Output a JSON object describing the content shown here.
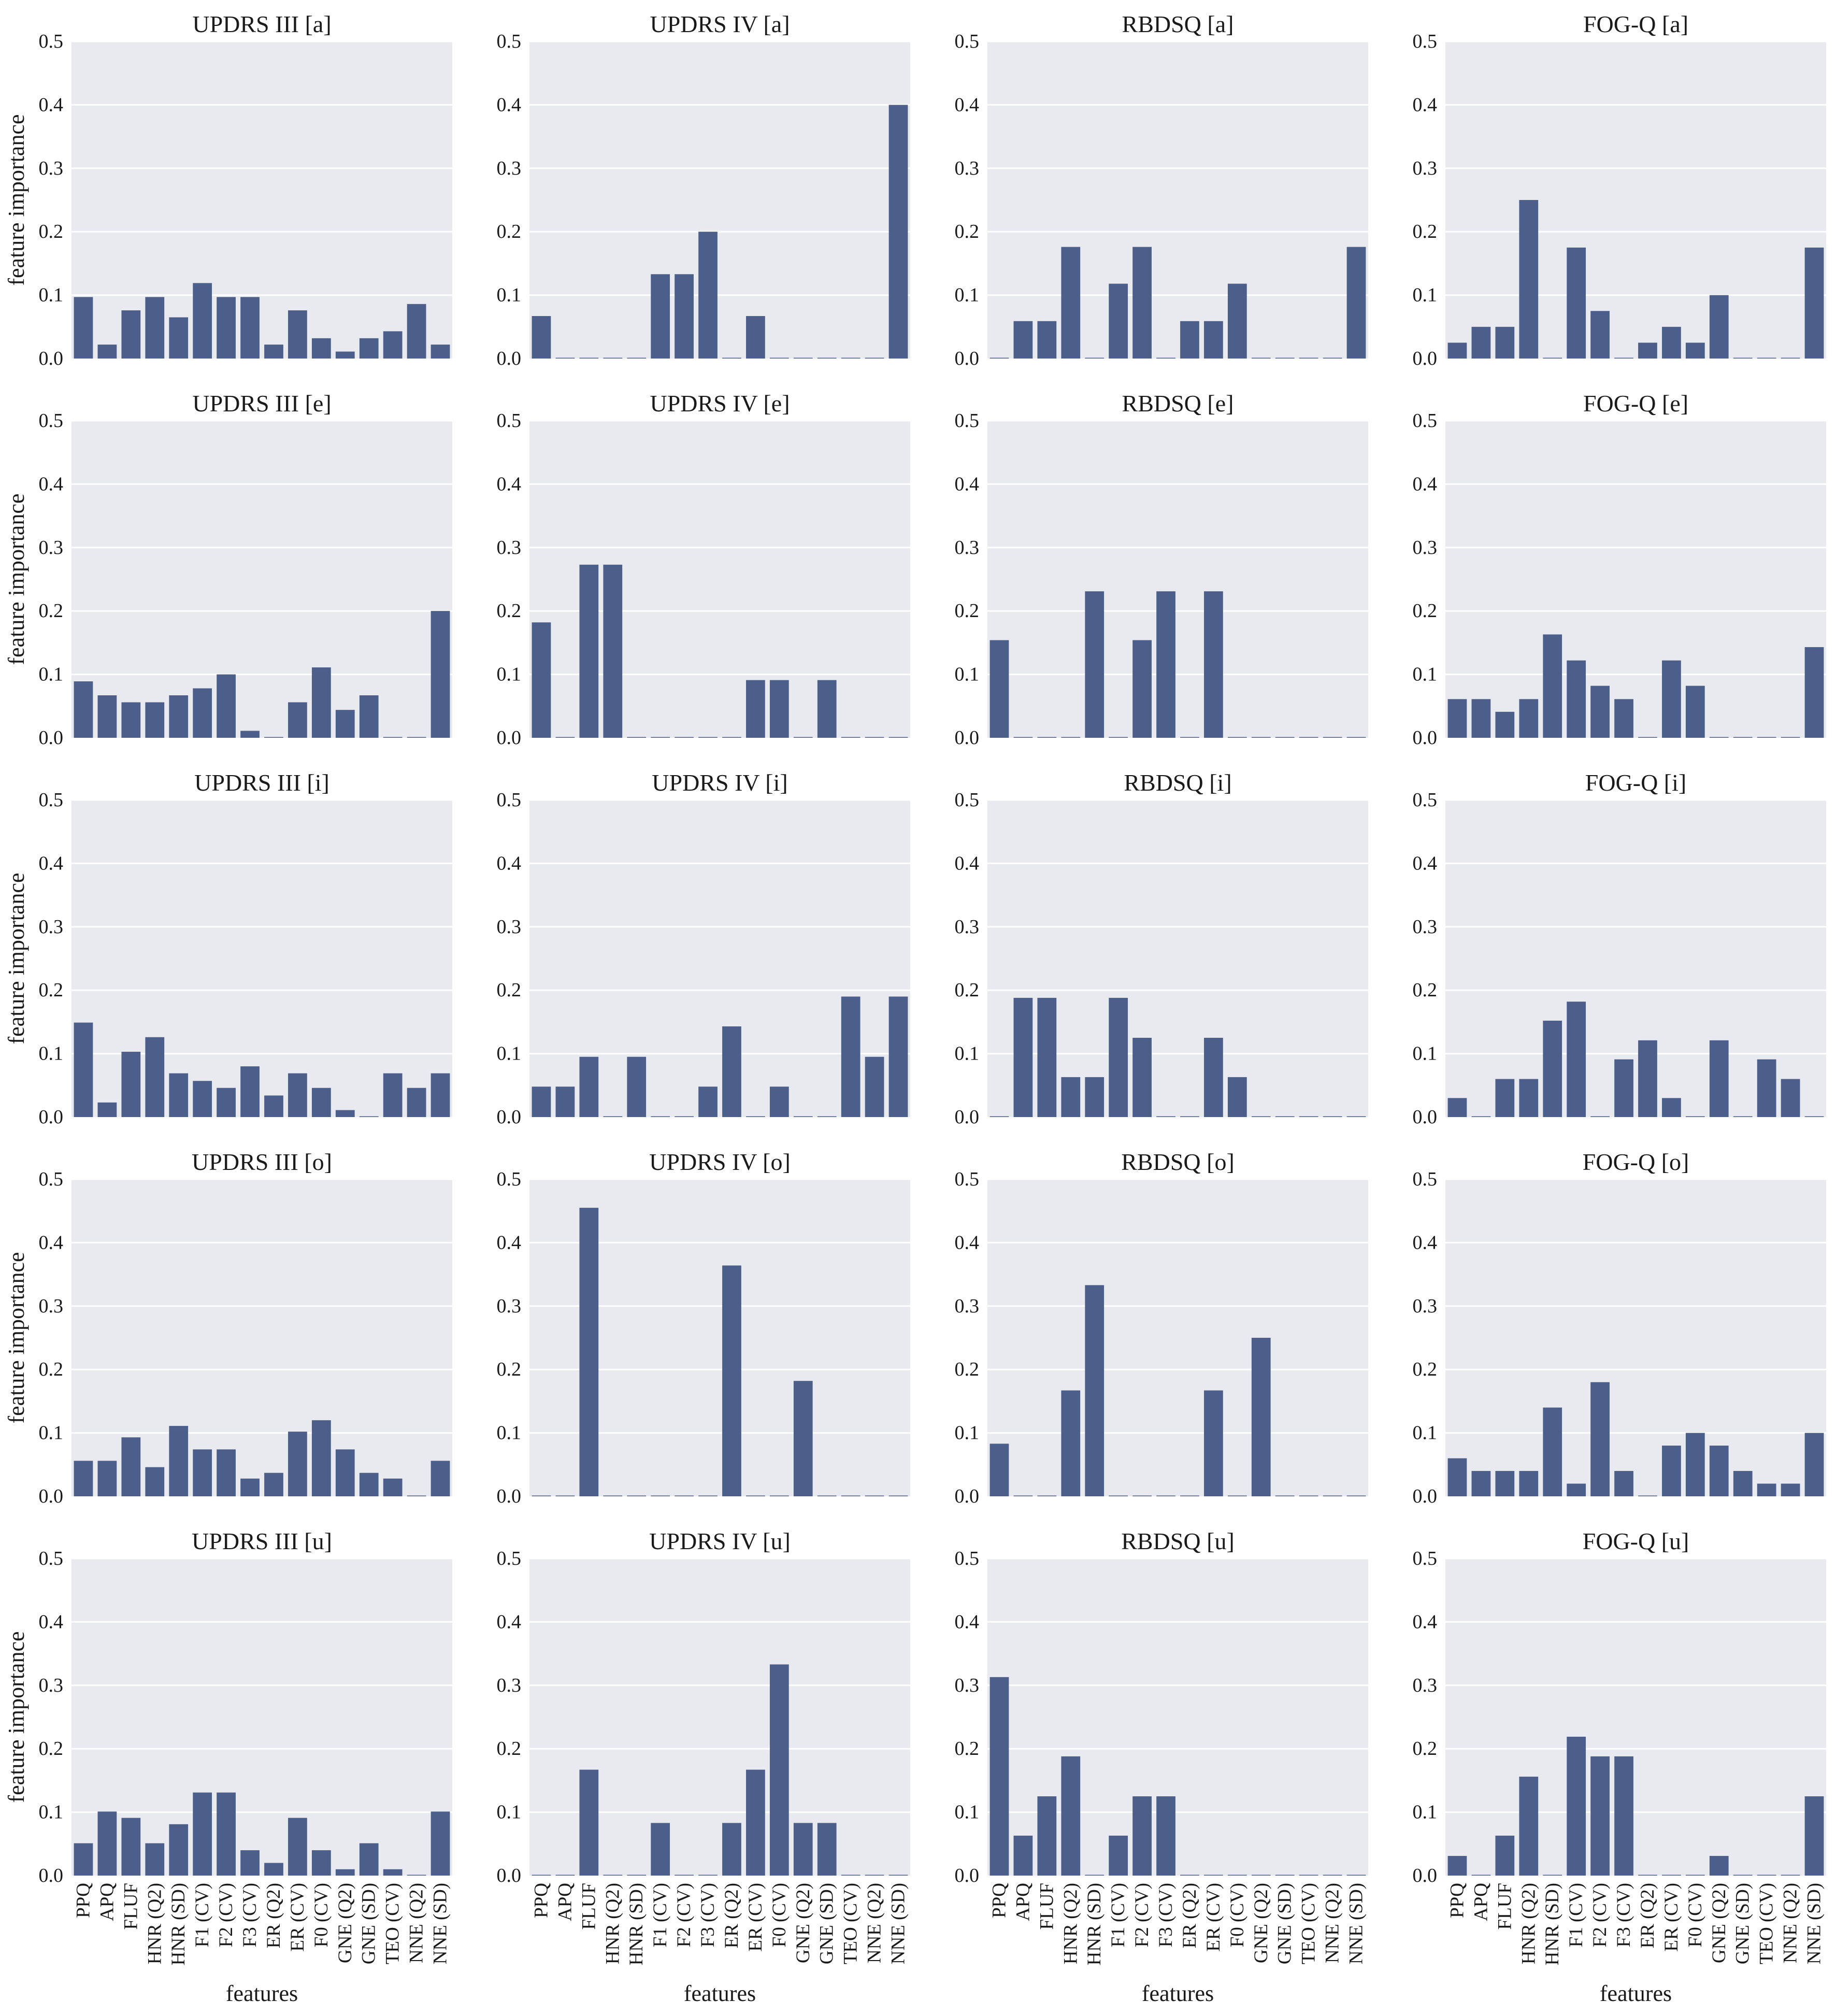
{
  "colors": {
    "bar": "#4c5f8a",
    "plot_bg": "#e9e9f0",
    "grid": "#ffffff"
  },
  "labels": {
    "ylabel": "feature importance",
    "xlabel": "features"
  },
  "y_ticks": [
    "0.0",
    "0.1",
    "0.2",
    "0.3",
    "0.4",
    "0.5"
  ],
  "categories": [
    "PPQ",
    "APQ",
    "FLUF",
    "HNR (Q2)",
    "HNR (SD)",
    "F1 (CV)",
    "F2 (CV)",
    "F3 (CV)",
    "ER (Q2)",
    "ER (CV)",
    "F0 (CV)",
    "GNE (Q2)",
    "GNE (SD)",
    "TEO (CV)",
    "NNE (Q2)",
    "NNE (SD)"
  ],
  "chart_data": [
    {
      "type": "bar",
      "title": "UPDRS III [a]",
      "ylim": [
        0,
        0.5
      ],
      "values": [
        0.097,
        0.022,
        0.076,
        0.097,
        0.065,
        0.119,
        0.097,
        0.097,
        0.022,
        0.076,
        0.032,
        0.011,
        0.032,
        0.043,
        0.086,
        0.022
      ]
    },
    {
      "type": "bar",
      "title": "UPDRS IV [a]",
      "ylim": [
        0,
        0.5
      ],
      "values": [
        0.067,
        0,
        0,
        0,
        0,
        0.133,
        0.133,
        0.2,
        0,
        0.067,
        0,
        0,
        0,
        0,
        0,
        0.4
      ]
    },
    {
      "type": "bar",
      "title": "RBDSQ [a]",
      "ylim": [
        0,
        0.5
      ],
      "values": [
        0,
        0.059,
        0.059,
        0.176,
        0,
        0.118,
        0.176,
        0,
        0.059,
        0.059,
        0.118,
        0,
        0,
        0,
        0,
        0.176
      ]
    },
    {
      "type": "bar",
      "title": "FOG-Q [a]",
      "ylim": [
        0,
        0.5
      ],
      "values": [
        0.025,
        0.05,
        0.05,
        0.25,
        0,
        0.175,
        0.075,
        0,
        0.025,
        0.05,
        0.025,
        0.1,
        0,
        0,
        0,
        0.175
      ]
    },
    {
      "type": "bar",
      "title": "UPDRS III [e]",
      "ylim": [
        0,
        0.5
      ],
      "values": [
        0.089,
        0.067,
        0.056,
        0.056,
        0.067,
        0.078,
        0.1,
        0.011,
        0,
        0.056,
        0.111,
        0.044,
        0.067,
        0,
        0,
        0.2
      ]
    },
    {
      "type": "bar",
      "title": "UPDRS IV [e]",
      "ylim": [
        0,
        0.5
      ],
      "values": [
        0.182,
        0,
        0.273,
        0.273,
        0,
        0,
        0,
        0,
        0,
        0.091,
        0.091,
        0,
        0.091,
        0,
        0,
        0
      ]
    },
    {
      "type": "bar",
      "title": "RBDSQ [e]",
      "ylim": [
        0,
        0.5
      ],
      "values": [
        0.154,
        0,
        0,
        0,
        0.231,
        0,
        0.154,
        0.231,
        0,
        0.231,
        0,
        0,
        0,
        0,
        0,
        0
      ]
    },
    {
      "type": "bar",
      "title": "FOG-Q [e]",
      "ylim": [
        0,
        0.5
      ],
      "values": [
        0.061,
        0.061,
        0.041,
        0.061,
        0.163,
        0.122,
        0.082,
        0.061,
        0,
        0.122,
        0.082,
        0,
        0,
        0,
        0,
        0.143
      ]
    },
    {
      "type": "bar",
      "title": "UPDRS III [i]",
      "ylim": [
        0,
        0.5
      ],
      "values": [
        0.149,
        0.023,
        0.103,
        0.126,
        0.069,
        0.057,
        0.046,
        0.08,
        0.034,
        0.069,
        0.046,
        0.011,
        0,
        0.069,
        0.046,
        0.069
      ]
    },
    {
      "type": "bar",
      "title": "UPDRS IV [i]",
      "ylim": [
        0,
        0.5
      ],
      "values": [
        0.048,
        0.048,
        0.095,
        0,
        0.095,
        0,
        0,
        0.048,
        0.143,
        0,
        0.048,
        0,
        0,
        0.19,
        0.095,
        0.19
      ]
    },
    {
      "type": "bar",
      "title": "RBDSQ [i]",
      "ylim": [
        0,
        0.5
      ],
      "values": [
        0,
        0.188,
        0.188,
        0.063,
        0.063,
        0.188,
        0.125,
        0,
        0,
        0.125,
        0.063,
        0,
        0,
        0,
        0,
        0
      ]
    },
    {
      "type": "bar",
      "title": "FOG-Q [i]",
      "ylim": [
        0,
        0.5
      ],
      "values": [
        0.03,
        0,
        0.06,
        0.06,
        0.152,
        0.182,
        0,
        0.091,
        0.121,
        0.03,
        0,
        0.121,
        0,
        0.091,
        0.06,
        0
      ]
    },
    {
      "type": "bar",
      "title": "UPDRS III [o]",
      "ylim": [
        0,
        0.5
      ],
      "values": [
        0.056,
        0.056,
        0.093,
        0.046,
        0.111,
        0.074,
        0.074,
        0.028,
        0.037,
        0.102,
        0.12,
        0.074,
        0.037,
        0.028,
        0,
        0.056
      ]
    },
    {
      "type": "bar",
      "title": "UPDRS IV [o]",
      "ylim": [
        0,
        0.5
      ],
      "values": [
        0,
        0,
        0.455,
        0,
        0,
        0,
        0,
        0,
        0.364,
        0,
        0,
        0.182,
        0,
        0,
        0,
        0
      ]
    },
    {
      "type": "bar",
      "title": "RBDSQ [o]",
      "ylim": [
        0,
        0.5
      ],
      "values": [
        0.083,
        0,
        0,
        0.167,
        0.333,
        0,
        0,
        0,
        0,
        0.167,
        0,
        0.25,
        0,
        0,
        0,
        0
      ]
    },
    {
      "type": "bar",
      "title": "FOG-Q [o]",
      "ylim": [
        0,
        0.5
      ],
      "values": [
        0.06,
        0.04,
        0.04,
        0.04,
        0.14,
        0.02,
        0.18,
        0.04,
        0,
        0.08,
        0.1,
        0.08,
        0.04,
        0.02,
        0.02,
        0.1
      ]
    },
    {
      "type": "bar",
      "title": "UPDRS III [u]",
      "ylim": [
        0,
        0.5
      ],
      "values": [
        0.051,
        0.101,
        0.091,
        0.051,
        0.081,
        0.131,
        0.131,
        0.04,
        0.02,
        0.091,
        0.04,
        0.01,
        0.051,
        0.01,
        0,
        0.101
      ]
    },
    {
      "type": "bar",
      "title": "UPDRS IV [u]",
      "ylim": [
        0,
        0.5
      ],
      "values": [
        0,
        0,
        0.167,
        0,
        0,
        0.083,
        0,
        0,
        0.083,
        0.167,
        0.333,
        0.083,
        0.083,
        0,
        0,
        0
      ]
    },
    {
      "type": "bar",
      "title": "RBDSQ [u]",
      "ylim": [
        0,
        0.5
      ],
      "values": [
        0.313,
        0.063,
        0.125,
        0.188,
        0,
        0.063,
        0.125,
        0.125,
        0,
        0,
        0,
        0,
        0,
        0,
        0,
        0
      ]
    },
    {
      "type": "bar",
      "title": "FOG-Q [u]",
      "ylim": [
        0,
        0.5
      ],
      "values": [
        0.031,
        0,
        0.063,
        0.156,
        0,
        0.219,
        0.188,
        0.188,
        0,
        0,
        0,
        0.031,
        0,
        0,
        0,
        0.125
      ]
    }
  ]
}
